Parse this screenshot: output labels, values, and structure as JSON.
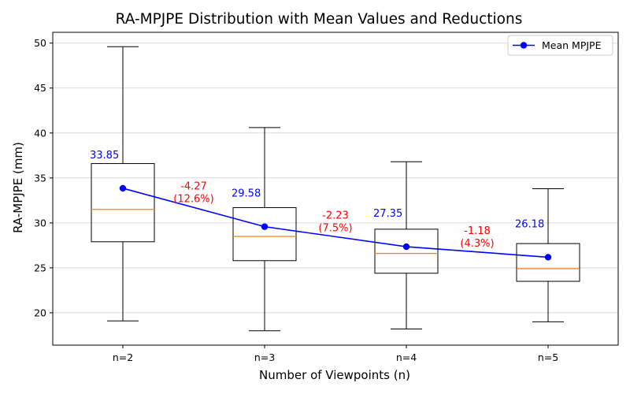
{
  "chart_data": {
    "type": "box",
    "title": "RA-MPJPE Distribution with Mean Values and Reductions",
    "xlabel": "Number of Viewpoints (n)",
    "ylabel": "RA-MPJPE (mm)",
    "categories": [
      "n=2",
      "n=3",
      "n=4",
      "n=5"
    ],
    "ylim": [
      16.4,
      51.2
    ],
    "yticks": [
      20,
      25,
      30,
      35,
      40,
      45,
      50
    ],
    "grid": "horizontal",
    "legend": {
      "position": "top-right",
      "entries": [
        "Mean MPJPE"
      ]
    },
    "boxes": [
      {
        "category": "n=2",
        "whisker_low": 19.1,
        "q1": 27.9,
        "median": 31.5,
        "q3": 36.6,
        "whisker_high": 49.6
      },
      {
        "category": "n=3",
        "whisker_low": 18.0,
        "q1": 25.8,
        "median": 28.5,
        "q3": 31.7,
        "whisker_high": 40.6
      },
      {
        "category": "n=4",
        "whisker_low": 18.2,
        "q1": 24.4,
        "median": 26.6,
        "q3": 29.3,
        "whisker_high": 36.8
      },
      {
        "category": "n=5",
        "whisker_low": 19.0,
        "q1": 23.5,
        "median": 24.9,
        "q3": 27.7,
        "whisker_high": 33.8
      }
    ],
    "series": [
      {
        "name": "Mean MPJPE",
        "values": [
          33.85,
          29.58,
          27.35,
          26.18
        ],
        "labels": [
          "33.85",
          "29.58",
          "27.35",
          "26.18"
        ]
      }
    ],
    "reductions": [
      {
        "between": [
          "n=2",
          "n=3"
        ],
        "delta": "-4.27",
        "pct": "(12.6%)"
      },
      {
        "between": [
          "n=3",
          "n=4"
        ],
        "delta": "-2.23",
        "pct": "(7.5%)"
      },
      {
        "between": [
          "n=4",
          "n=5"
        ],
        "delta": "-1.18",
        "pct": "(4.3%)"
      }
    ],
    "colors": {
      "box": "#000000",
      "median": "#ff7f0e",
      "mean": "#0000ff",
      "reduction": "#ff0000",
      "grid": "#d9d9d9"
    }
  }
}
